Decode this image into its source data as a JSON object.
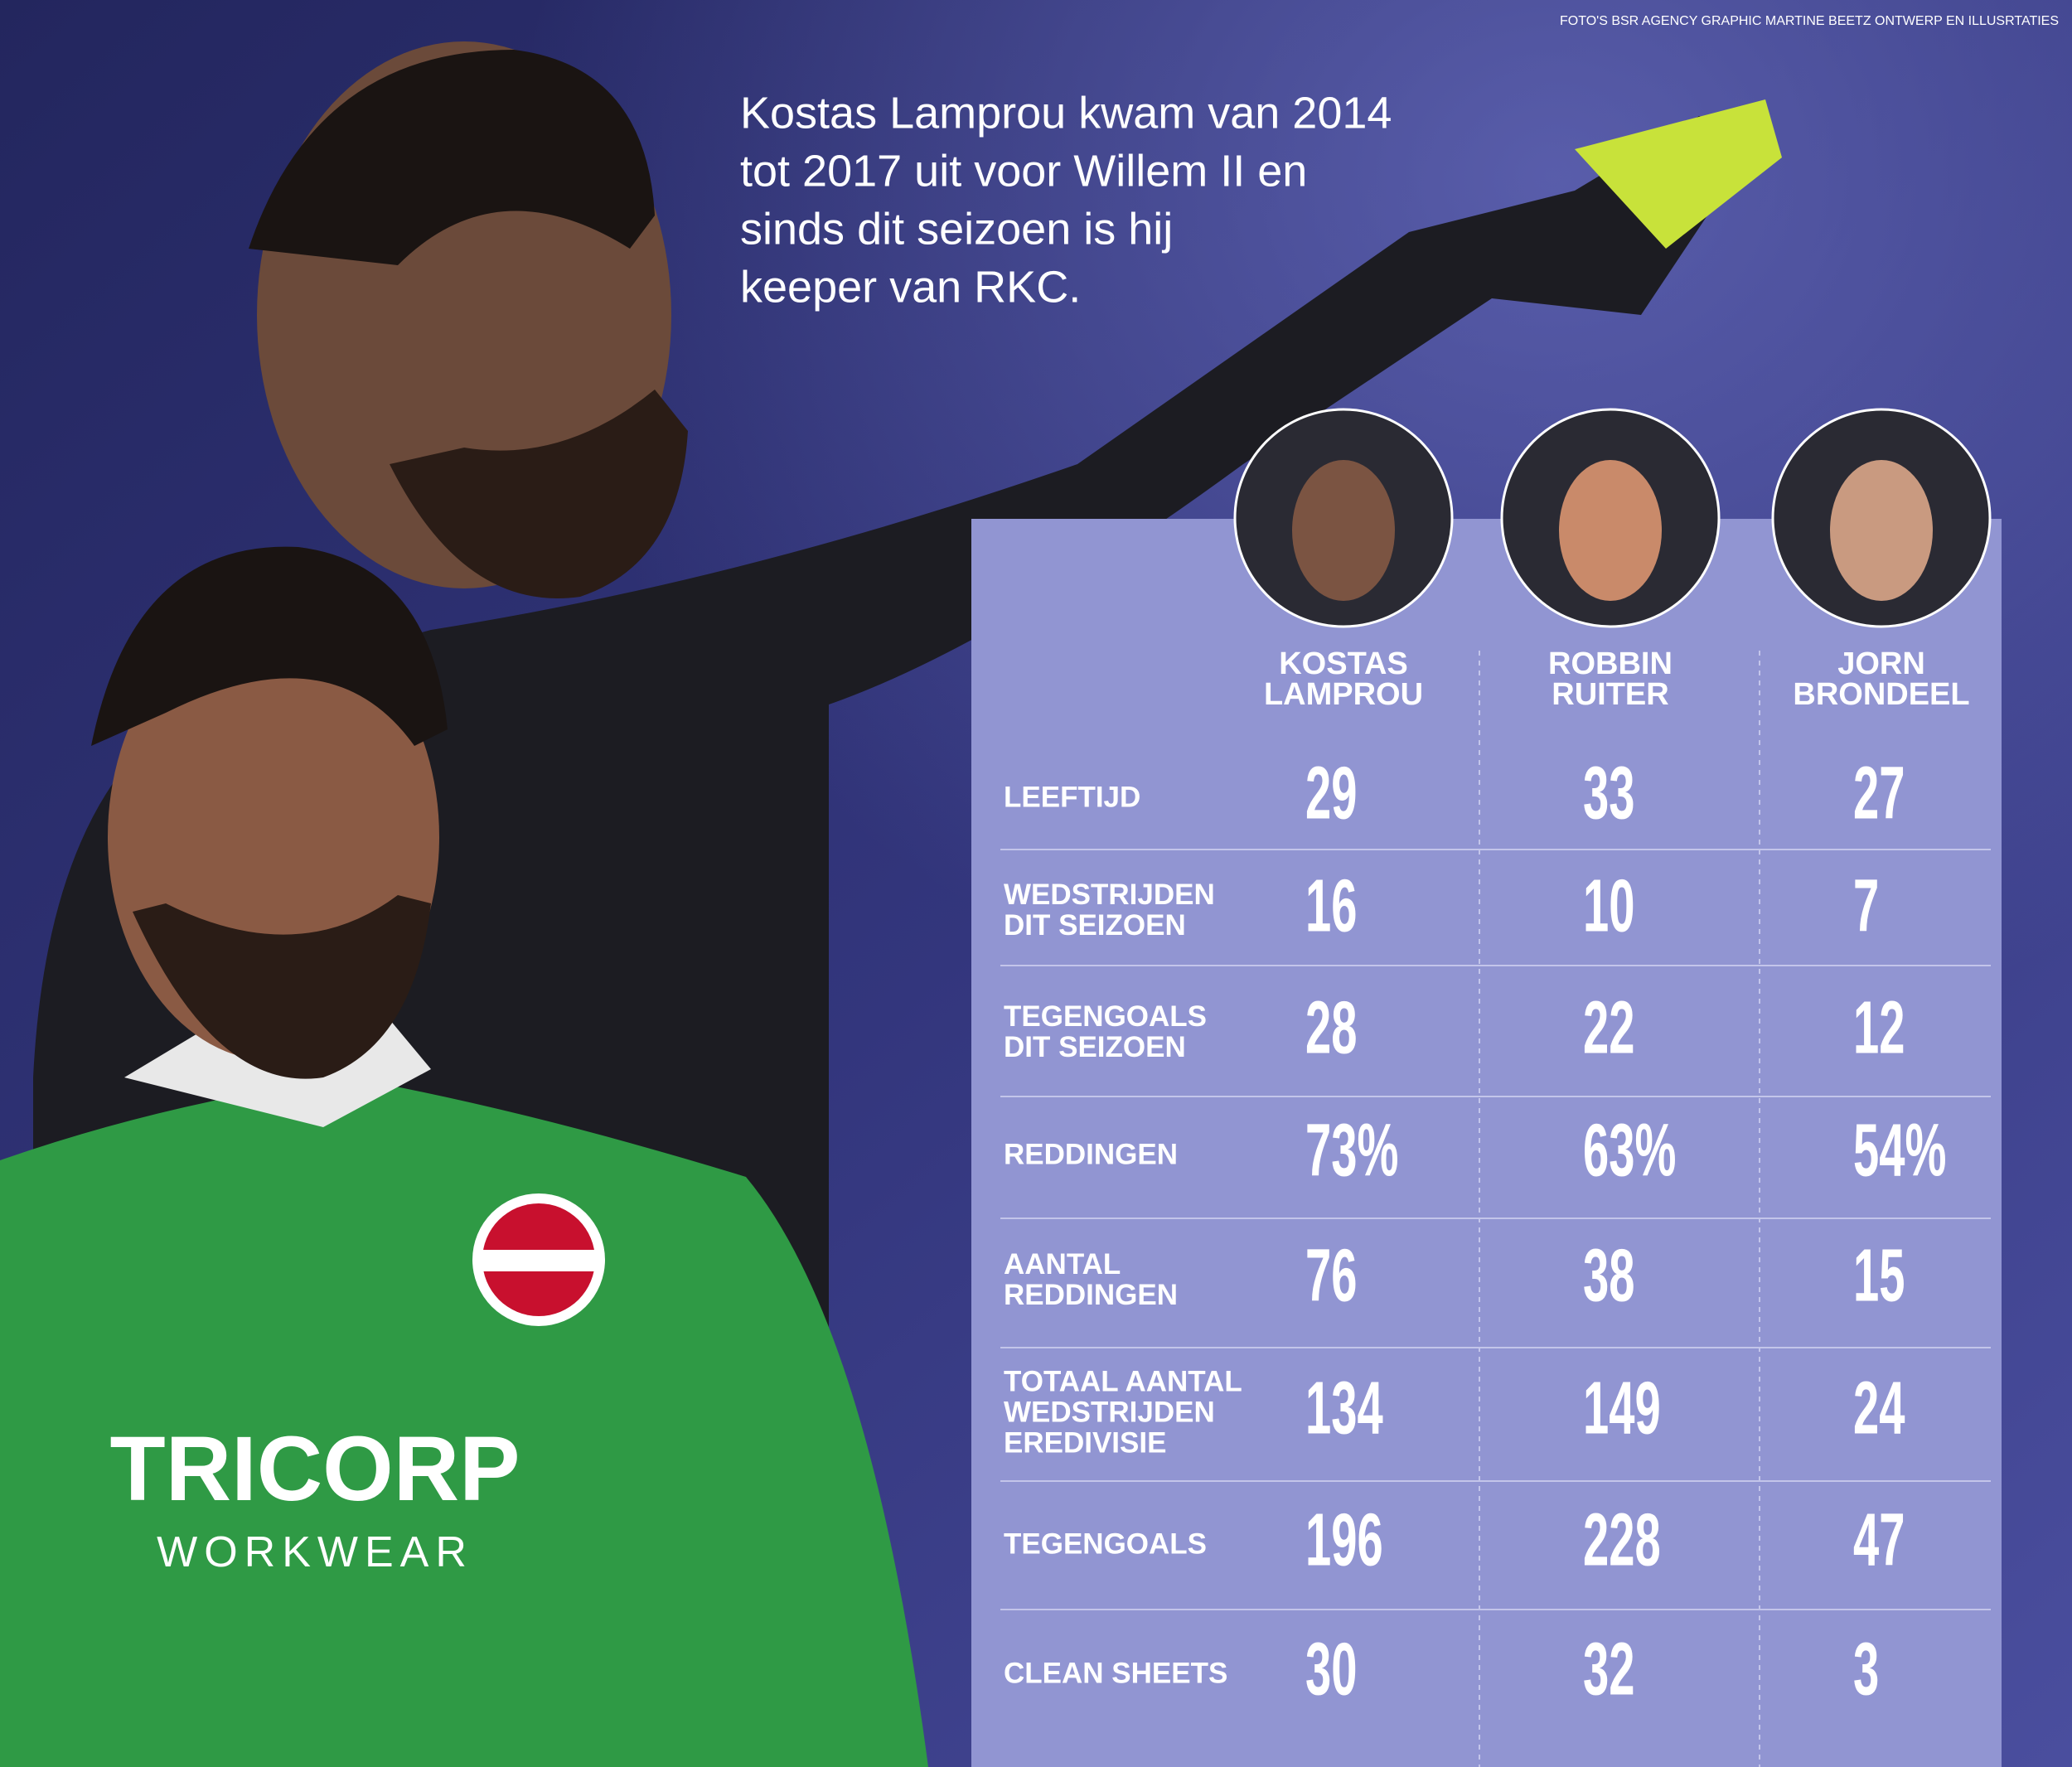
{
  "credit": "FOTO'S BSR AGENCY GRAPHIC MARTINE BEETZ ONTWERP EN ILLUSRTATIES",
  "intro": [
    "Kostas Lamprou kwam van 2014",
    "tot 2017 uit voor Willem II en",
    "sinds dit seizoen is hij",
    "keeper van RKC."
  ],
  "table": {
    "players": [
      [
        "KOSTAS",
        "LAMPROU"
      ],
      [
        "ROBBIN",
        "RUITER"
      ],
      [
        "JORN",
        "BRONDEEL"
      ]
    ],
    "rows": [
      {
        "label": [
          "LEEFTIJD"
        ],
        "values": [
          "29",
          "33",
          "27"
        ]
      },
      {
        "label": [
          "WEDSTRIJDEN",
          "DIT SEIZOEN"
        ],
        "values": [
          "16",
          "10",
          "7"
        ]
      },
      {
        "label": [
          "TEGENGOALS",
          "DIT SEIZOEN"
        ],
        "values": [
          "28",
          "22",
          "12"
        ]
      },
      {
        "label": [
          "REDDINGEN"
        ],
        "values": [
          "73%",
          "63%",
          "54%"
        ]
      },
      {
        "label": [
          "AANTAL",
          "REDDINGEN"
        ],
        "values": [
          "76",
          "38",
          "15"
        ]
      },
      {
        "label": [
          "TOTAAL AANTAL",
          "WEDSTRIJDEN",
          "EREDIVISIE"
        ],
        "values": [
          "134",
          "149",
          "24"
        ]
      },
      {
        "label": [
          "TEGENGOALS"
        ],
        "values": [
          "196",
          "228",
          "47"
        ]
      },
      {
        "label": [
          "CLEAN SHEETS"
        ],
        "values": [
          "30",
          "32",
          "3"
        ]
      }
    ]
  }
}
